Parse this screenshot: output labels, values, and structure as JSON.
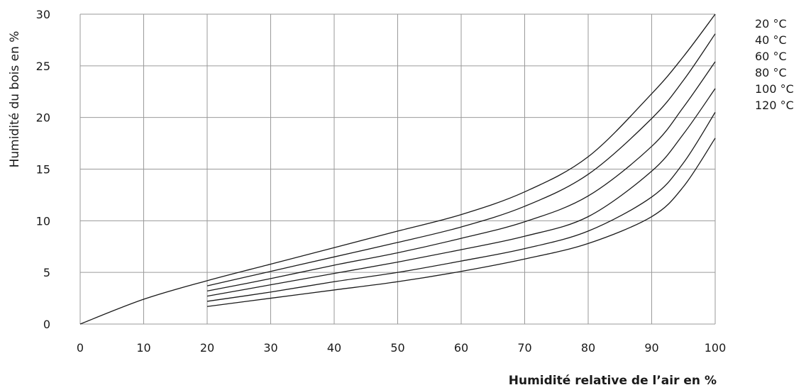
{
  "chart_data": {
    "type": "line",
    "title": "",
    "xlabel": "Humidité relative de l’air en %",
    "ylabel": "Humidité du bois en %",
    "xlim": [
      0,
      100
    ],
    "ylim": [
      0,
      30
    ],
    "grid": true,
    "legend_position": "right",
    "x_ticks": [
      "0",
      "10",
      "20",
      "30",
      "40",
      "50",
      "60",
      "70",
      "80",
      "90",
      "100"
    ],
    "y_ticks": [
      "0",
      "5",
      "10",
      "15",
      "20",
      "25",
      "30"
    ],
    "series": [
      {
        "name": "20 °C",
        "x": [
          0,
          10,
          20,
          30,
          40,
          50,
          60,
          70,
          80,
          90,
          95,
          100
        ],
        "y": [
          0,
          2.4,
          4.2,
          5.8,
          7.4,
          9.0,
          10.6,
          12.8,
          16.2,
          22.3,
          25.9,
          30.0
        ]
      },
      {
        "name": "40 °C",
        "x": [
          20,
          30,
          40,
          50,
          60,
          70,
          80,
          90,
          95,
          100
        ],
        "y": [
          3.7,
          5.1,
          6.5,
          7.9,
          9.4,
          11.4,
          14.5,
          19.9,
          23.6,
          28.1
        ]
      },
      {
        "name": "60 °C",
        "x": [
          20,
          30,
          40,
          50,
          60,
          70,
          80,
          90,
          95,
          100
        ],
        "y": [
          3.2,
          4.4,
          5.7,
          6.9,
          8.3,
          9.9,
          12.4,
          17.2,
          21.0,
          25.4
        ]
      },
      {
        "name": "80 °C",
        "x": [
          20,
          30,
          40,
          50,
          60,
          70,
          80,
          90,
          95,
          100
        ],
        "y": [
          2.7,
          3.8,
          4.9,
          6.0,
          7.2,
          8.5,
          10.4,
          14.8,
          18.4,
          22.8
        ]
      },
      {
        "name": "100 °C",
        "x": [
          20,
          30,
          40,
          50,
          60,
          70,
          80,
          90,
          95,
          100
        ],
        "y": [
          2.2,
          3.1,
          4.1,
          5.0,
          6.1,
          7.3,
          9.0,
          12.3,
          15.6,
          20.5
        ]
      },
      {
        "name": "120 °C",
        "x": [
          20,
          30,
          40,
          50,
          60,
          70,
          80,
          90,
          95,
          100
        ],
        "y": [
          1.7,
          2.5,
          3.3,
          4.1,
          5.1,
          6.3,
          7.8,
          10.4,
          13.3,
          18.0
        ]
      }
    ],
    "colors": {
      "line": "#1a1a1a",
      "grid": "#9a9a9a",
      "text": "#1a1a1a"
    }
  }
}
